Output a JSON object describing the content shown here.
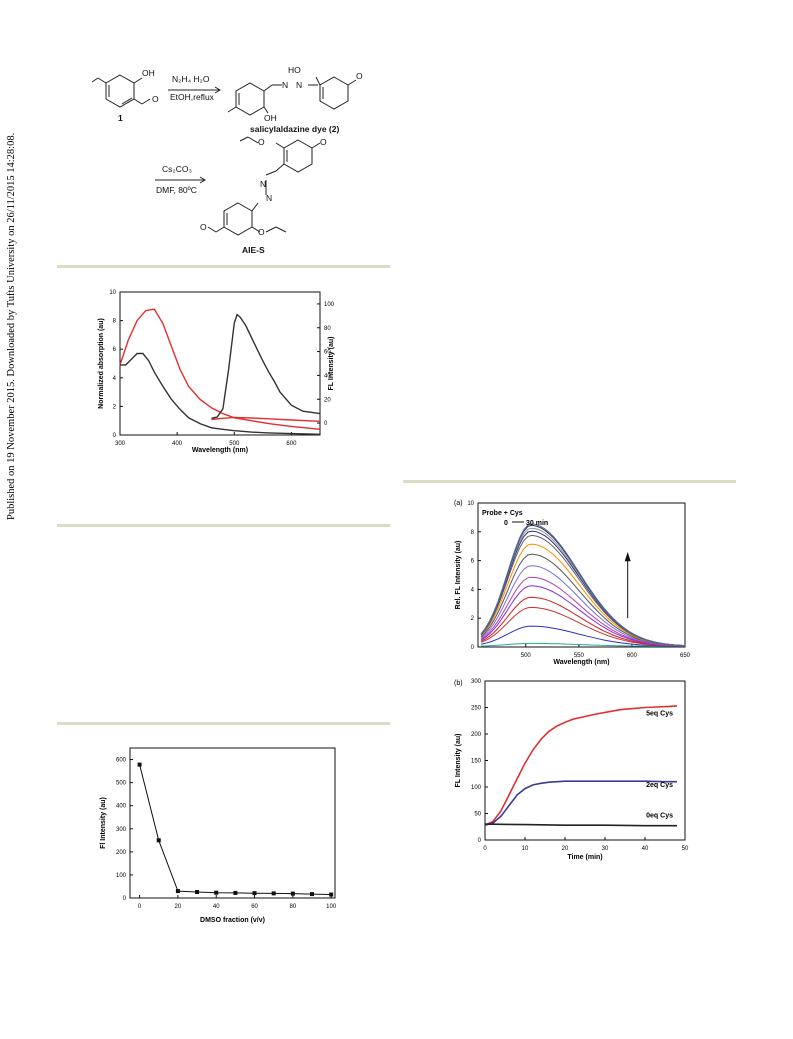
{
  "side_note": "Published on 19 November 2015. Downloaded by Tufts University on 26/11/2015 14:28:08.",
  "scheme": {
    "compound1_label": "1",
    "reagent1_top": "N₂H₄ H₂O",
    "reagent1_bottom": "EtOH,reflux",
    "product1_label": "salicylaldazine dye (2)",
    "reagent2_top": "Cs₂CO₃",
    "reagent2_bottom": "DMF, 80ºC",
    "product2_label": "AIE-S",
    "labels": [
      "OH",
      "HO",
      "OH",
      "O",
      "O",
      "O",
      "O",
      "O",
      "O",
      "N",
      "N",
      "N",
      "N"
    ]
  },
  "chart_data": [
    {
      "id": "absorption-emission",
      "type": "line",
      "title": "",
      "xlabel": "Wavelength (nm)",
      "ylabel": "Normalized absorption (au)",
      "y2label": "FL Intensity (au)",
      "xlim": [
        300,
        650
      ],
      "ylim": [
        0,
        10
      ],
      "y2lim": [
        -10,
        110
      ],
      "xticks": [
        "300",
        "400",
        "500",
        "600"
      ],
      "yticks": [
        "0",
        "2",
        "4",
        "6",
        "8",
        "10"
      ],
      "y2ticks": [
        "0",
        "20",
        "40",
        "60",
        "80",
        "100"
      ],
      "series": [
        {
          "color": "#e03030",
          "axis": "left",
          "x": [
            300,
            315,
            330,
            345,
            360,
            375,
            390,
            405,
            420,
            440,
            460,
            480,
            500,
            530,
            560,
            600,
            650
          ],
          "y": [
            4.9,
            6.7,
            8.0,
            8.7,
            8.8,
            7.8,
            6.2,
            4.6,
            3.4,
            2.5,
            1.9,
            1.5,
            1.2,
            1.0,
            0.8,
            0.6,
            0.4
          ]
        },
        {
          "color": "#333333",
          "axis": "left",
          "x": [
            300,
            310,
            320,
            330,
            340,
            350,
            360,
            375,
            390,
            405,
            420,
            440,
            460,
            480,
            500,
            530,
            560,
            600,
            650
          ],
          "y": [
            4.9,
            4.9,
            5.3,
            5.7,
            5.7,
            5.2,
            4.4,
            3.4,
            2.5,
            1.8,
            1.2,
            0.8,
            0.5,
            0.4,
            0.3,
            0.2,
            0.15,
            0.1,
            0.05
          ]
        },
        {
          "color": "#333333",
          "axis": "right",
          "x": [
            460,
            470,
            480,
            490,
            500,
            505,
            510,
            520,
            530,
            540,
            550,
            560,
            570,
            580,
            600,
            620,
            650
          ],
          "y": [
            4,
            5,
            12,
            45,
            84,
            91,
            89,
            82,
            72,
            62,
            52,
            43,
            35,
            26,
            15,
            10,
            8
          ]
        },
        {
          "color": "#e03030",
          "axis": "right",
          "x": [
            460,
            480,
            500,
            530,
            560,
            600,
            650
          ],
          "y": [
            3.0,
            4.0,
            4.8,
            4.3,
            3.6,
            2.6,
            1.5
          ]
        }
      ]
    },
    {
      "id": "dmso-fraction",
      "type": "line",
      "title": "",
      "xlabel": "DMSO fraction (v/v)",
      "ylabel": "Fl Intensity (au)",
      "xlim": [
        -5,
        102
      ],
      "ylim": [
        0,
        650
      ],
      "xticks": [
        "0",
        "20",
        "40",
        "60",
        "80",
        "100"
      ],
      "yticks": [
        "0",
        "100",
        "200",
        "300",
        "400",
        "500",
        "600"
      ],
      "x": [
        0,
        10,
        20,
        30,
        40,
        50,
        60,
        70,
        80,
        90,
        100
      ],
      "y": [
        578,
        250,
        30,
        26,
        23,
        22,
        21,
        20,
        19,
        17,
        15
      ]
    },
    {
      "id": "time-course-spectra",
      "type": "line",
      "panel_label": "(a)",
      "annotation_1": "Probe + Cys",
      "annotation_2": "0",
      "annotation_3": "30 min",
      "xlabel": "Wavelength (nm)",
      "ylabel": "Rel. FL Intensity (au)",
      "xlim": [
        455,
        650
      ],
      "ylim": [
        0,
        10
      ],
      "xticks": [
        "500",
        "550",
        "600",
        "650"
      ],
      "yticks": [
        "0",
        "2",
        "4",
        "6",
        "8",
        "10"
      ],
      "peaks": [
        0.2,
        1.4,
        2.7,
        3.4,
        4.2,
        4.8,
        5.6,
        6.4,
        7.1,
        7.7,
        8.0,
        8.2,
        8.4,
        8.5
      ],
      "colors": [
        "#2aa7a0",
        "#3030c0",
        "#d03030",
        "#cc2222",
        "#8a2be2",
        "#b040b0",
        "#7070e0",
        "#555555",
        "#ff8a00",
        "#606060",
        "#2a2a8a",
        "#909090",
        "#303030",
        "#4b6cb7"
      ]
    },
    {
      "id": "cys-kinetics",
      "type": "line",
      "panel_label": "(b)",
      "xlabel": "Time (min)",
      "ylabel": "FL Intensity (au)",
      "xlim": [
        0,
        50
      ],
      "ylim": [
        0,
        300
      ],
      "xticks": [
        "0",
        "10",
        "20",
        "30",
        "40",
        "50"
      ],
      "yticks": [
        "0",
        "50",
        "100",
        "150",
        "200",
        "250",
        "300"
      ],
      "series": [
        {
          "name": "5eq Cys",
          "color": "#e03030",
          "x": [
            0,
            2,
            4,
            6,
            8,
            10,
            12,
            14,
            16,
            18,
            20,
            22,
            25,
            28,
            31,
            34,
            37,
            40,
            43,
            46,
            48
          ],
          "y": [
            28,
            35,
            55,
            85,
            115,
            145,
            170,
            190,
            205,
            215,
            222,
            228,
            233,
            238,
            242,
            246,
            248,
            250,
            251,
            252,
            253
          ]
        },
        {
          "name": "2eq Cys",
          "color": "#3a3a9a",
          "x": [
            0,
            2,
            4,
            6,
            8,
            10,
            12,
            14,
            16,
            18,
            20,
            22,
            25,
            30,
            35,
            40,
            45,
            48
          ],
          "y": [
            28,
            32,
            45,
            65,
            85,
            97,
            104,
            107,
            109,
            110,
            111,
            111,
            111,
            111,
            111,
            111,
            110,
            110
          ]
        },
        {
          "name": "0eq Cys",
          "color": "#222222",
          "x": [
            0,
            10,
            20,
            30,
            40,
            48
          ],
          "y": [
            30,
            29,
            28,
            28,
            27,
            27
          ]
        }
      ]
    }
  ]
}
